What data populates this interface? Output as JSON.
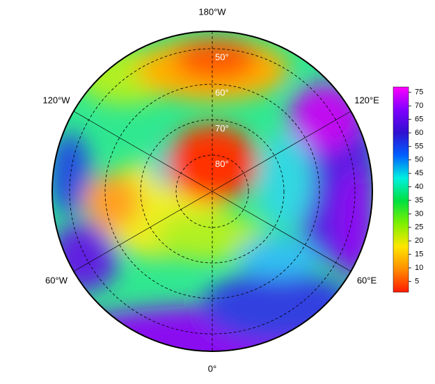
{
  "chart_data": {
    "type": "polar_map",
    "longitude_labels": {
      "top": "180°W",
      "bottom": "0°",
      "upper_left": "120°W",
      "upper_right": "120°E",
      "lower_left": "60°W",
      "lower_right": "60°E"
    },
    "latitude_labels": [
      {
        "value": 50,
        "label": "50°"
      },
      {
        "value": 60,
        "label": "60°"
      },
      {
        "value": 70,
        "label": "70°"
      },
      {
        "value": 80,
        "label": "80°"
      }
    ],
    "colorbar": {
      "clim": [
        1,
        77
      ],
      "ticks": [
        5,
        10,
        15,
        20,
        25,
        30,
        35,
        40,
        45,
        50,
        55,
        60,
        65,
        70,
        75
      ],
      "colormap": [
        "#ff1a00",
        "#ff8c00",
        "#ffe600",
        "#7ef000",
        "#00e040",
        "#00f0e0",
        "#0060ff",
        "#3010d0",
        "#8000ff",
        "#ff00ff"
      ]
    }
  }
}
